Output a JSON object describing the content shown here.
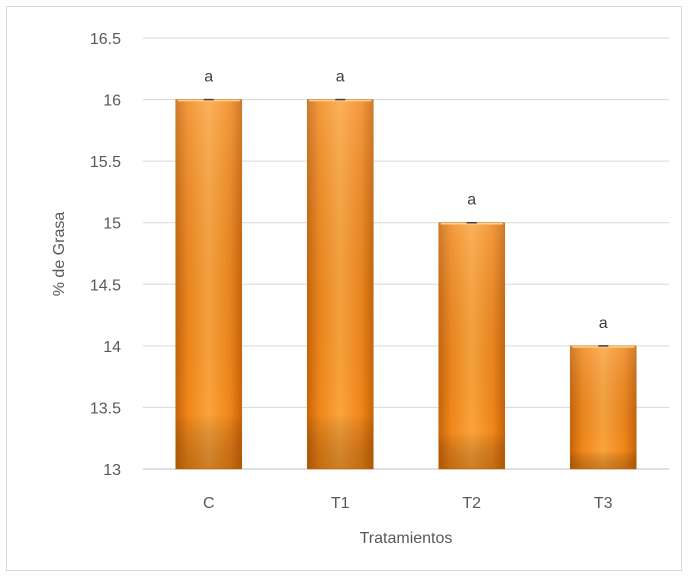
{
  "chart_data": {
    "type": "bar",
    "categories": [
      "C",
      "T1",
      "T2",
      "T3"
    ],
    "values": [
      16,
      16,
      15,
      14
    ],
    "significance_labels": [
      "a",
      "a",
      "a",
      "a"
    ],
    "title": "",
    "xlabel": "Tratamientos",
    "ylabel": "% de Grasa",
    "ylim": [
      13,
      16.5
    ],
    "yticks": [
      "13",
      "13.5",
      "14",
      "14.5",
      "15",
      "15.5",
      "16",
      "16.5"
    ],
    "grid": true,
    "legend": "none",
    "bar_color": "#f7941d",
    "gridline_color": "#d9d9d9"
  }
}
